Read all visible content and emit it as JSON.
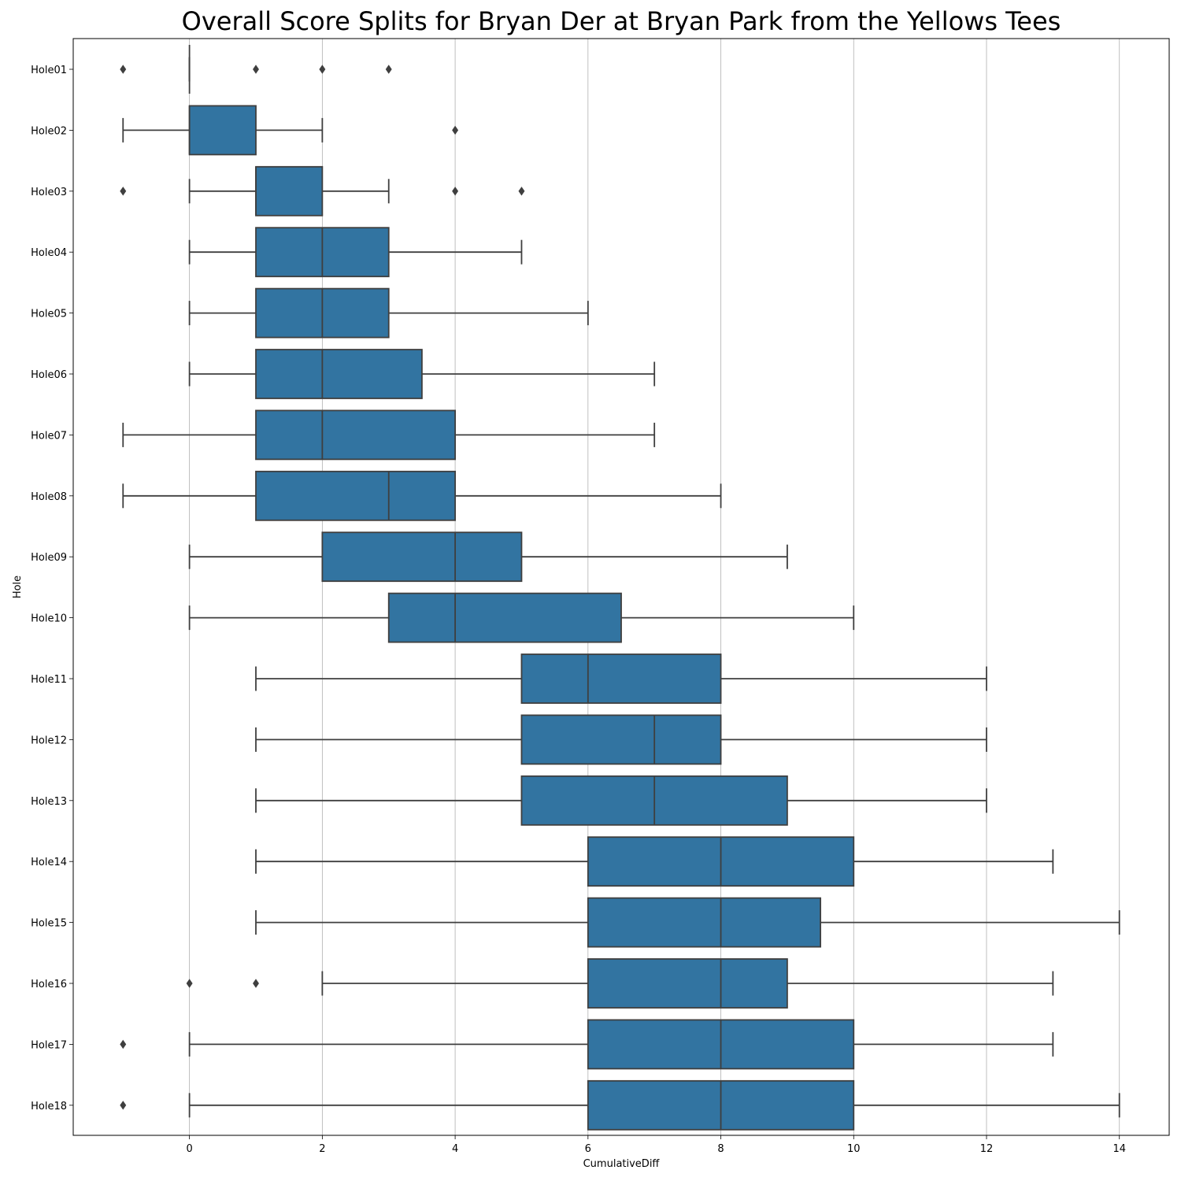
{
  "chart_data": {
    "type": "boxplot",
    "orientation": "horizontal",
    "title": "Overall Score Splits for Bryan Der at Bryan Park from the Yellows Tees",
    "xlabel": "CumulativeDiff",
    "ylabel": "Hole",
    "xlim": [
      -1.75,
      14.75
    ],
    "xticks": [
      0,
      2,
      4,
      6,
      8,
      10,
      12,
      14
    ],
    "grid": "vertical",
    "box_color": "#3274a1",
    "line_color": "#3f3f3f",
    "holes": [
      {
        "label": "Hole01",
        "whisker_low": 0,
        "q1": 0,
        "median": 0,
        "q3": 0,
        "whisker_high": 0,
        "outliers": [
          -1,
          1,
          2,
          3
        ]
      },
      {
        "label": "Hole02",
        "whisker_low": -1,
        "q1": 0,
        "median": 0,
        "q3": 1,
        "whisker_high": 2,
        "outliers": [
          4
        ]
      },
      {
        "label": "Hole03",
        "whisker_low": 0,
        "q1": 1,
        "median": 1,
        "q3": 2,
        "whisker_high": 3,
        "outliers": [
          -1,
          4,
          5
        ]
      },
      {
        "label": "Hole04",
        "whisker_low": 0,
        "q1": 1,
        "median": 2,
        "q3": 3,
        "whisker_high": 5,
        "outliers": []
      },
      {
        "label": "Hole05",
        "whisker_low": 0,
        "q1": 1,
        "median": 2,
        "q3": 3,
        "whisker_high": 6,
        "outliers": []
      },
      {
        "label": "Hole06",
        "whisker_low": 0,
        "q1": 1,
        "median": 2,
        "q3": 3.5,
        "whisker_high": 7,
        "outliers": []
      },
      {
        "label": "Hole07",
        "whisker_low": -1,
        "q1": 1,
        "median": 2,
        "q3": 4,
        "whisker_high": 7,
        "outliers": []
      },
      {
        "label": "Hole08",
        "whisker_low": -1,
        "q1": 1,
        "median": 3,
        "q3": 4,
        "whisker_high": 8,
        "outliers": []
      },
      {
        "label": "Hole09",
        "whisker_low": 0,
        "q1": 2,
        "median": 4,
        "q3": 5,
        "whisker_high": 9,
        "outliers": []
      },
      {
        "label": "Hole10",
        "whisker_low": 0,
        "q1": 3,
        "median": 4,
        "q3": 6.5,
        "whisker_high": 10,
        "outliers": []
      },
      {
        "label": "Hole11",
        "whisker_low": 1,
        "q1": 5,
        "median": 6,
        "q3": 8,
        "whisker_high": 12,
        "outliers": []
      },
      {
        "label": "Hole12",
        "whisker_low": 1,
        "q1": 5,
        "median": 7,
        "q3": 8,
        "whisker_high": 12,
        "outliers": []
      },
      {
        "label": "Hole13",
        "whisker_low": 1,
        "q1": 5,
        "median": 7,
        "q3": 9,
        "whisker_high": 12,
        "outliers": []
      },
      {
        "label": "Hole14",
        "whisker_low": 1,
        "q1": 6,
        "median": 8,
        "q3": 10,
        "whisker_high": 13,
        "outliers": []
      },
      {
        "label": "Hole15",
        "whisker_low": 1,
        "q1": 6,
        "median": 8,
        "q3": 9.5,
        "whisker_high": 14,
        "outliers": []
      },
      {
        "label": "Hole16",
        "whisker_low": 2,
        "q1": 6,
        "median": 8,
        "q3": 9,
        "whisker_high": 13,
        "outliers": [
          0,
          1
        ]
      },
      {
        "label": "Hole17",
        "whisker_low": 0,
        "q1": 6,
        "median": 8,
        "q3": 10,
        "whisker_high": 13,
        "outliers": [
          -1
        ]
      },
      {
        "label": "Hole18",
        "whisker_low": 0,
        "q1": 6,
        "median": 8,
        "q3": 10,
        "whisker_high": 14,
        "outliers": [
          -1
        ]
      }
    ]
  }
}
